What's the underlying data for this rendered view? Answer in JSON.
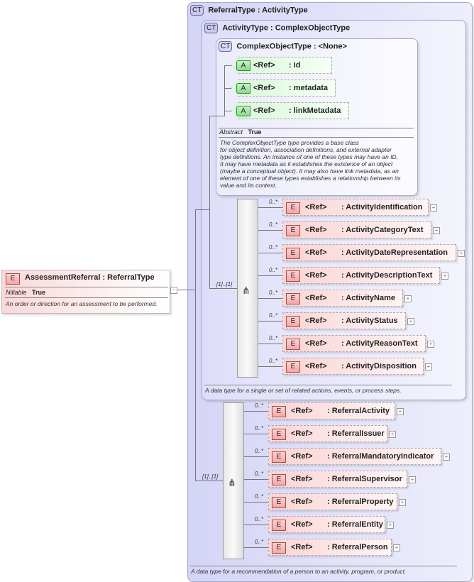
{
  "root": {
    "badge": "E",
    "name": "AssessmentReferral",
    "type": ": ReferralType",
    "prop_label": "Nillable",
    "prop_value": "True",
    "description": "An order or direction for an assessment to be performed.",
    "collapse": "−"
  },
  "referral_type": {
    "badge": "CT",
    "name": "ReferralType",
    "base": ": ActivityType",
    "description": "A data type for a recommendation of a person to an activity, program, or product.",
    "sequence": {
      "occurrence": "[1]..[1]",
      "elements": [
        {
          "ref": "<Ref>",
          "name": ": ReferralActivity",
          "occ": "0..*"
        },
        {
          "ref": "<Ref>",
          "name": ": ReferralIssuer",
          "occ": "0..*"
        },
        {
          "ref": "<Ref>",
          "name": ": ReferralMandatoryIndicator",
          "occ": "0..*"
        },
        {
          "ref": "<Ref>",
          "name": ": ReferralSupervisor",
          "occ": "0..*"
        },
        {
          "ref": "<Ref>",
          "name": ": ReferralProperty",
          "occ": "0..*"
        },
        {
          "ref": "<Ref>",
          "name": ": ReferralEntity",
          "occ": "0..*"
        },
        {
          "ref": "<Ref>",
          "name": ": ReferralPerson",
          "occ": "0..*"
        }
      ]
    }
  },
  "activity_type": {
    "badge": "CT",
    "name": "ActivityType",
    "base": ": ComplexObjectType",
    "description": "A data type for a single or set of related actions, events, or process steps.",
    "sequence": {
      "occurrence": "[1]..[1]",
      "elements": [
        {
          "ref": "<Ref>",
          "name": ": ActivityIdentification",
          "occ": "0..*"
        },
        {
          "ref": "<Ref>",
          "name": ": ActivityCategoryText",
          "occ": "0..*"
        },
        {
          "ref": "<Ref>",
          "name": ": ActivityDateRepresentation",
          "occ": "0..*"
        },
        {
          "ref": "<Ref>",
          "name": ": ActivityDescriptionText",
          "occ": "0..*"
        },
        {
          "ref": "<Ref>",
          "name": ": ActivityName",
          "occ": "0..*"
        },
        {
          "ref": "<Ref>",
          "name": ": ActivityStatus",
          "occ": "0..*"
        },
        {
          "ref": "<Ref>",
          "name": ": ActivityReasonText",
          "occ": "0..*"
        },
        {
          "ref": "<Ref>",
          "name": ": ActivityDisposition",
          "occ": "0..*"
        }
      ]
    }
  },
  "complex_object_type": {
    "badge": "CT",
    "name": "ComplexObjectType",
    "base": ": <None>",
    "prop_label": "Abstract",
    "prop_value": "True",
    "attributes": [
      {
        "badge": "A",
        "ref": "<Ref>",
        "name": ": id"
      },
      {
        "badge": "A",
        "ref": "<Ref>",
        "name": ": metadata"
      },
      {
        "badge": "A",
        "ref": "<Ref>",
        "name": ": linkMetadata"
      }
    ],
    "description_lines": [
      "The ComplexObjectType type provides a base class",
      "for object definition, association definitions, and external adapter",
      "type definitions. An instance of one of these types may have an ID.",
      "It may have metadata as it establishes the existence of an object",
      "(maybe a conceptual object). It may also have link metadata, as an",
      "element of one of these types establishes a relationship between its",
      "value and its context."
    ]
  },
  "colors": {
    "element": "#fbd4d4",
    "attribute": "#d8f8d8",
    "complex_type": "#d4d4f6"
  }
}
